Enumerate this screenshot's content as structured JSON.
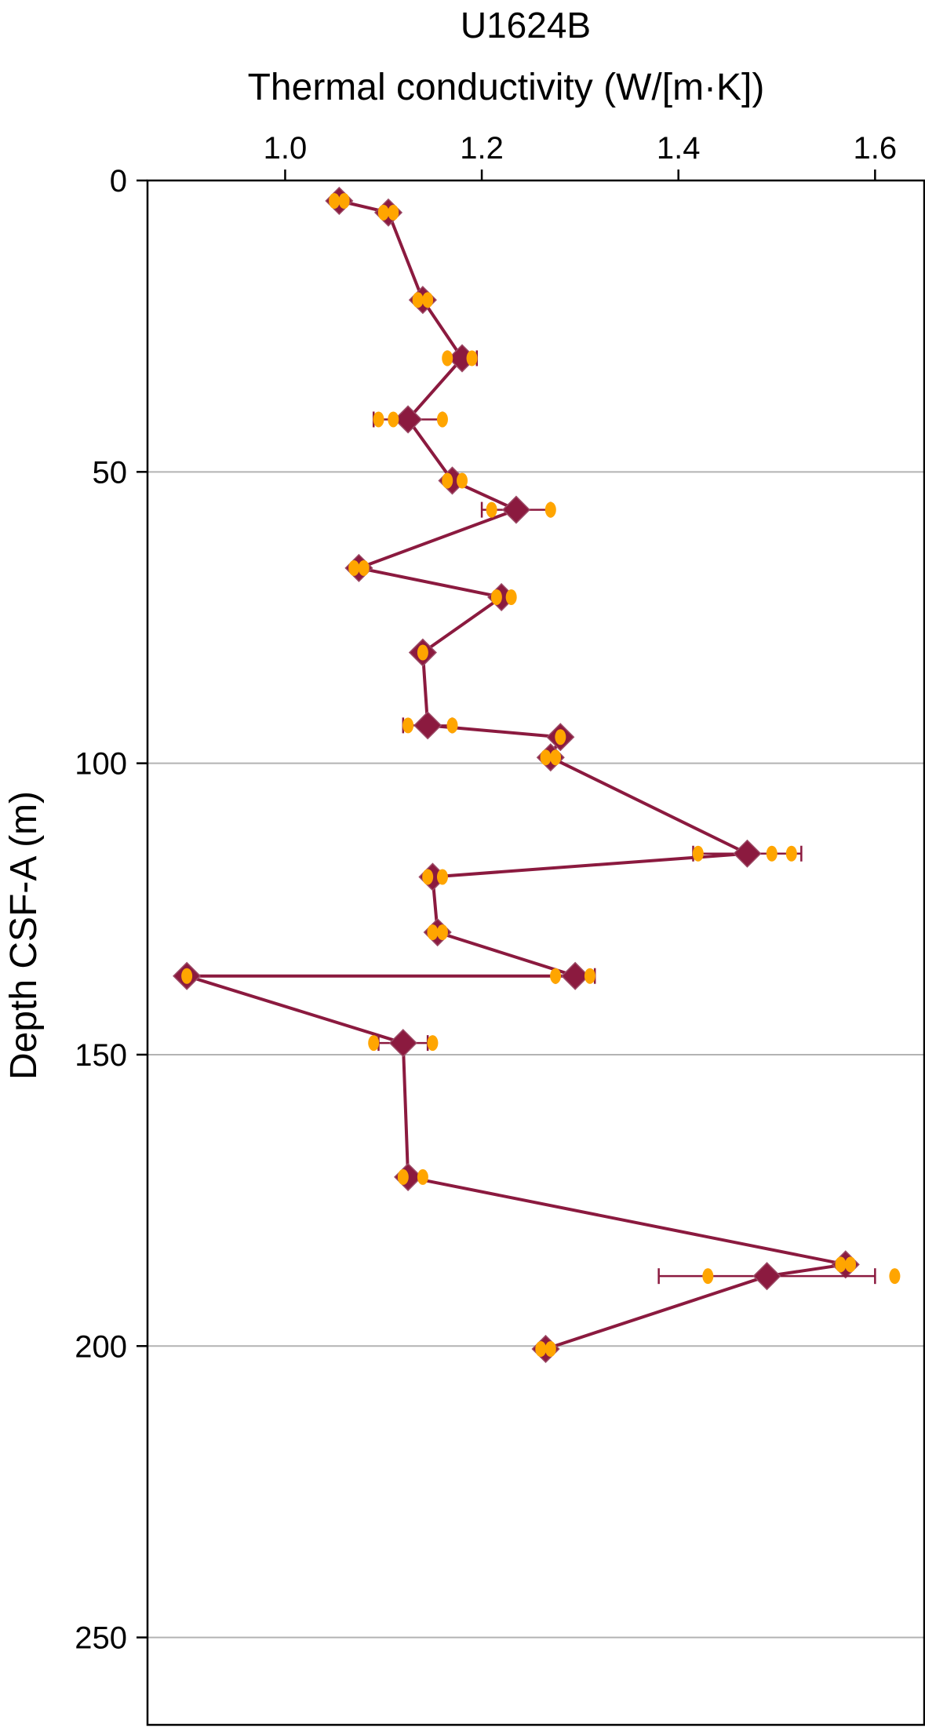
{
  "chart_data": {
    "type": "scatter",
    "title": "U1624B",
    "xlabel": "Thermal conductivity (W/[m·K])",
    "ylabel": "Depth CSF-A (m)",
    "x_axis_position": "top",
    "y_axis_inverted": true,
    "xlim": [
      0.86,
      1.65
    ],
    "ylim": [
      0,
      265
    ],
    "xticks": [
      1.0,
      1.2,
      1.4,
      1.6
    ],
    "xtick_labels": [
      "1.0",
      "1.2",
      "1.4",
      "1.6"
    ],
    "yticks": [
      0,
      50,
      100,
      150,
      200,
      250
    ],
    "ytick_labels": [
      "0",
      "50",
      "100",
      "150",
      "200",
      "250"
    ],
    "grid": "horizontal",
    "colors": {
      "mean": "#8b1a3f",
      "measurement": "#ffa500",
      "grid": "#b3b3b3"
    },
    "series": [
      {
        "marker": "diamond",
        "connected": true,
        "points": [
          {
            "depth": 3.5,
            "mean": 1.055,
            "err": 0.0,
            "measurements": [
              1.05,
              1.06
            ]
          },
          {
            "depth": 5.5,
            "mean": 1.105,
            "err": 0.0,
            "measurements": [
              1.1,
              1.11
            ]
          },
          {
            "depth": 20.5,
            "mean": 1.14,
            "err": 0.0,
            "measurements": [
              1.135,
              1.145
            ]
          },
          {
            "depth": 30.5,
            "mean": 1.18,
            "err": 0.015,
            "measurements": [
              1.165,
              1.19
            ]
          },
          {
            "depth": 41,
            "mean": 1.125,
            "err": 0.035,
            "measurements": [
              1.095,
              1.11,
              1.16
            ]
          },
          {
            "depth": 51.5,
            "mean": 1.17,
            "err": 0.0,
            "measurements": [
              1.165,
              1.18
            ]
          },
          {
            "depth": 56.5,
            "mean": 1.235,
            "err": 0.035,
            "measurements": [
              1.21,
              1.27
            ]
          },
          {
            "depth": 66.5,
            "mean": 1.075,
            "err": 0.0,
            "measurements": [
              1.07,
              1.08
            ]
          },
          {
            "depth": 71.5,
            "mean": 1.22,
            "err": 0.0,
            "measurements": [
              1.215,
              1.23
            ]
          },
          {
            "depth": 81,
            "mean": 1.14,
            "err": 0.0,
            "measurements": [
              1.14
            ]
          },
          {
            "depth": 93.5,
            "mean": 1.145,
            "err": 0.025,
            "measurements": [
              1.125,
              1.17
            ]
          },
          {
            "depth": 95.5,
            "mean": 1.28,
            "err": 0.0,
            "measurements": [
              1.28
            ]
          },
          {
            "depth": 99,
            "mean": 1.27,
            "err": 0.0,
            "measurements": [
              1.265,
              1.275
            ]
          },
          {
            "depth": 115.5,
            "mean": 1.47,
            "err": 0.055,
            "measurements": [
              1.42,
              1.495,
              1.515
            ]
          },
          {
            "depth": 119.5,
            "mean": 1.15,
            "err": 0.0,
            "measurements": [
              1.145,
              1.16
            ]
          },
          {
            "depth": 129,
            "mean": 1.155,
            "err": 0.0,
            "measurements": [
              1.15,
              1.16
            ]
          },
          {
            "depth": 136.5,
            "mean": 1.295,
            "err": 0.02,
            "measurements": [
              1.275,
              1.31
            ]
          },
          {
            "depth": 136.5,
            "mean": 0.9,
            "err": 0.0,
            "measurements": [
              0.9
            ]
          },
          {
            "depth": 148,
            "mean": 1.12,
            "err": 0.025,
            "measurements": [
              1.09,
              1.15
            ]
          },
          {
            "depth": 171,
            "mean": 1.125,
            "err": 0.0,
            "measurements": [
              1.12,
              1.14
            ]
          },
          {
            "depth": 186,
            "mean": 1.57,
            "err": 0.0,
            "measurements": [
              1.565,
              1.575
            ]
          },
          {
            "depth": 188,
            "mean": 1.49,
            "err": 0.11,
            "measurements": [
              1.43,
              1.62
            ]
          },
          {
            "depth": 200.5,
            "mean": 1.265,
            "err": 0.0,
            "measurements": [
              1.26,
              1.27
            ]
          }
        ]
      }
    ]
  }
}
